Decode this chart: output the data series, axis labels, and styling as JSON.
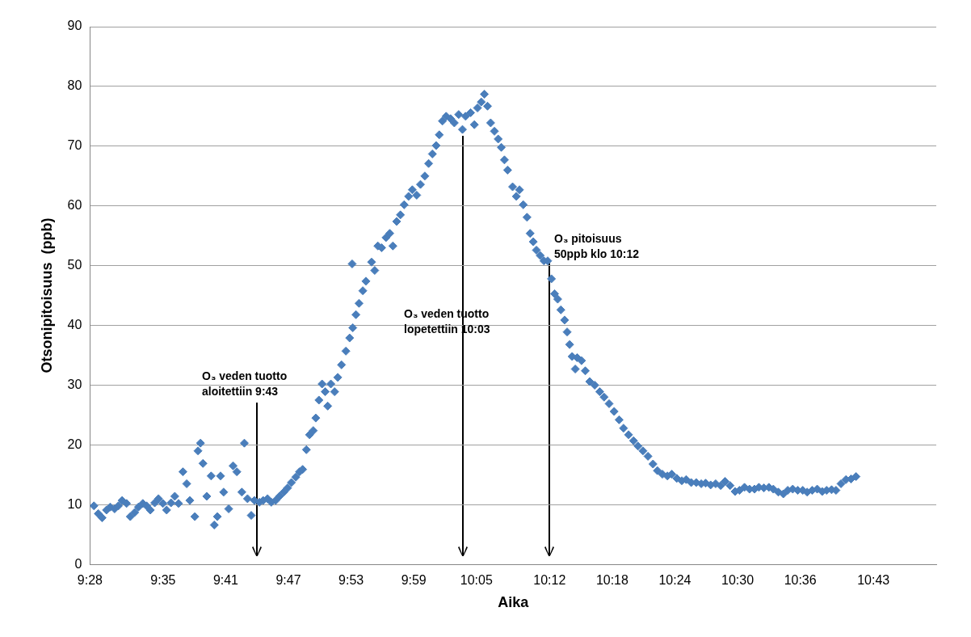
{
  "chart_data": {
    "type": "scatter",
    "xlabel": "Aika",
    "ylabel": "Otsonipitoisuus  (ppb)",
    "color": "#4a7ebb",
    "marker": "diamond",
    "grid": "y",
    "xlim": [
      9.4667,
      10.817
    ],
    "ylim": [
      0,
      90
    ],
    "yticks": [
      0,
      10,
      20,
      30,
      40,
      50,
      60,
      70,
      80,
      90
    ],
    "xticks": [
      {
        "value": 9.4667,
        "label": "9:28"
      },
      {
        "value": 9.5833,
        "label": "9:35"
      },
      {
        "value": 9.6833,
        "label": "9:41"
      },
      {
        "value": 9.7833,
        "label": "9:47"
      },
      {
        "value": 9.8833,
        "label": "9:53"
      },
      {
        "value": 9.9833,
        "label": "9:59"
      },
      {
        "value": 10.0833,
        "label": "10:05"
      },
      {
        "value": 10.2,
        "label": "10:12"
      },
      {
        "value": 10.3,
        "label": "10:18"
      },
      {
        "value": 10.4,
        "label": "10:24"
      },
      {
        "value": 10.5,
        "label": "10:30"
      },
      {
        "value": 10.6,
        "label": "10:36"
      },
      {
        "value": 10.7167,
        "label": "10:43"
      }
    ],
    "x": [
      9.473,
      9.48,
      9.486,
      9.493,
      9.499,
      9.506,
      9.512,
      9.518,
      9.525,
      9.531,
      9.538,
      9.544,
      9.551,
      9.557,
      9.563,
      9.57,
      9.576,
      9.583,
      9.589,
      9.596,
      9.602,
      9.608,
      9.615,
      9.621,
      9.626,
      9.634,
      9.639,
      9.643,
      9.647,
      9.653,
      9.66,
      9.665,
      9.67,
      9.675,
      9.68,
      9.688,
      9.695,
      9.701,
      9.709,
      9.713,
      9.718,
      9.724,
      9.729,
      9.737,
      9.743,
      9.75,
      9.756,
      9.763,
      9.769,
      9.776,
      9.782,
      9.788,
      9.795,
      9.801,
      9.806,
      9.812,
      9.817,
      9.823,
      9.827,
      9.832,
      9.837,
      9.842,
      9.846,
      9.851,
      9.857,
      9.862,
      9.868,
      9.875,
      9.881,
      9.885,
      9.886,
      9.891,
      9.896,
      9.902,
      9.907,
      9.916,
      9.921,
      9.926,
      9.932,
      9.939,
      9.945,
      9.95,
      9.956,
      9.962,
      9.968,
      9.975,
      9.981,
      9.988,
      9.994,
      10.001,
      10.007,
      10.013,
      10.019,
      10.024,
      10.029,
      10.035,
      10.042,
      10.048,
      10.055,
      10.061,
      10.066,
      10.074,
      10.08,
      10.085,
      10.091,
      10.096,
      10.101,
      10.106,
      10.112,
      10.118,
      10.123,
      10.128,
      10.133,
      10.141,
      10.147,
      10.152,
      10.158,
      10.164,
      10.169,
      10.174,
      10.179,
      10.185,
      10.191,
      10.197,
      10.203,
      10.208,
      10.213,
      10.218,
      10.224,
      10.228,
      10.232,
      10.236,
      10.241,
      10.244,
      10.251,
      10.257,
      10.264,
      10.272,
      10.28,
      10.287,
      10.295,
      10.303,
      10.311,
      10.318,
      10.326,
      10.334,
      10.341,
      10.349,
      10.357,
      10.365,
      10.372,
      10.38,
      10.388,
      10.395,
      10.403,
      10.411,
      10.418,
      10.426,
      10.434,
      10.442,
      10.449,
      10.457,
      10.465,
      10.473,
      10.48,
      10.488,
      10.496,
      10.503,
      10.511,
      10.519,
      10.527,
      10.534,
      10.542,
      10.55,
      10.557,
      10.565,
      10.573,
      10.58,
      10.588,
      10.596,
      10.604,
      10.611,
      10.619,
      10.627,
      10.635,
      10.642,
      10.65,
      10.657,
      10.665,
      10.673,
      10.681,
      10.689
    ],
    "values": [
      9.8,
      8.5,
      7.8,
      9.1,
      9.6,
      9.3,
      9.8,
      10.7,
      10.2,
      8.0,
      8.7,
      9.6,
      10.2,
      9.8,
      9.1,
      10.3,
      11.0,
      10.2,
      9.1,
      10.3,
      11.4,
      10.2,
      15.5,
      13.5,
      10.7,
      8.0,
      19.0,
      20.3,
      16.9,
      11.4,
      14.8,
      6.6,
      8.0,
      14.8,
      12.1,
      9.3,
      16.5,
      15.5,
      12.1,
      20.3,
      11.0,
      8.2,
      10.7,
      10.4,
      10.7,
      11.0,
      10.4,
      10.7,
      11.4,
      12.1,
      12.8,
      13.7,
      14.6,
      15.5,
      15.9,
      19.2,
      21.7,
      22.4,
      24.5,
      27.5,
      30.2,
      28.9,
      26.5,
      30.2,
      28.9,
      31.3,
      33.4,
      35.7,
      37.9,
      50.3,
      39.6,
      41.8,
      43.7,
      45.8,
      47.4,
      50.6,
      49.2,
      53.3,
      53.0,
      54.7,
      55.4,
      53.3,
      57.4,
      58.5,
      60.2,
      61.6,
      62.7,
      61.8,
      63.6,
      65.0,
      67.1,
      68.7,
      70.1,
      71.9,
      74.2,
      75.0,
      74.6,
      73.9,
      75.3,
      72.8,
      75.0,
      75.6,
      73.6,
      76.4,
      77.4,
      78.7,
      76.7,
      73.9,
      72.5,
      71.2,
      69.8,
      67.7,
      66.0,
      63.2,
      61.6,
      62.7,
      60.2,
      58.1,
      55.4,
      54.0,
      52.6,
      51.7,
      50.8,
      50.8,
      47.8,
      45.3,
      44.4,
      42.6,
      40.9,
      38.9,
      36.8,
      34.8,
      32.7,
      34.6,
      34.1,
      32.4,
      30.6,
      30.0,
      28.9,
      28.0,
      26.9,
      25.6,
      24.2,
      22.8,
      21.7,
      20.7,
      19.8,
      19.0,
      18.1,
      16.8,
      15.7,
      15.1,
      14.8,
      15.1,
      14.4,
      14.0,
      14.2,
      13.7,
      13.7,
      13.5,
      13.6,
      13.3,
      13.5,
      13.2,
      13.9,
      13.2,
      12.2,
      12.4,
      12.9,
      12.6,
      12.6,
      12.9,
      12.8,
      12.9,
      12.6,
      12.1,
      11.8,
      12.4,
      12.6,
      12.4,
      12.4,
      12.1,
      12.4,
      12.6,
      12.2,
      12.4,
      12.5,
      12.4,
      13.5,
      14.2,
      14.3,
      14.7
    ],
    "annotations": [
      "O₃ veden tuotto\naloitettiin 9:43",
      "O₃ veden tuotto\nlopetettiin 10:03",
      "O₃ pitoisuus\n50ppb klo 10:12"
    ]
  }
}
